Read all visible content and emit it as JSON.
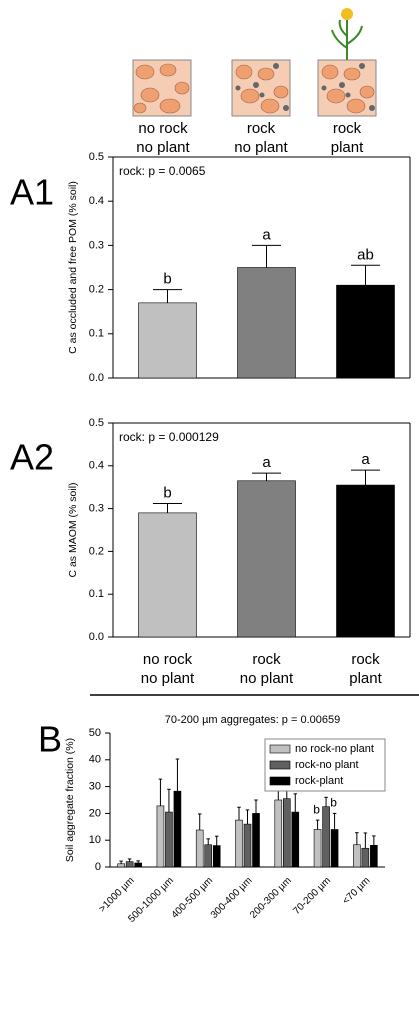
{
  "illustration": {
    "labels": [
      "no rock\nno plant",
      "rock\nno plant",
      "rock\nplant"
    ]
  },
  "chart_data": [
    {
      "type": "bar",
      "panel": "A1",
      "ylabel": "C as occluded and free POM (% soil)",
      "annotation": "rock: p = 0.0065",
      "categories": [
        null,
        null,
        null
      ],
      "values": [
        0.17,
        0.25,
        0.21
      ],
      "errors": [
        0.03,
        0.05,
        0.045
      ],
      "letters": [
        "b",
        "a",
        "ab"
      ],
      "colors": [
        "#c0c0c0",
        "#808080",
        "#000000"
      ],
      "ylim": [
        0,
        0.5
      ],
      "yticks": [
        {
          "value": 0,
          "label": "0.0"
        },
        0.1,
        0.2,
        0.3,
        0.4,
        0.5
      ]
    },
    {
      "type": "bar",
      "panel": "A2",
      "ylabel": "C as MAOM (% soil)",
      "annotation": "rock: p = 0.000129",
      "categories": [
        "no rock\nno plant",
        "rock\nno plant",
        "rock\nplant"
      ],
      "values": [
        0.29,
        0.365,
        0.355
      ],
      "errors": [
        0.022,
        0.018,
        0.035
      ],
      "letters": [
        "b",
        "a",
        "a"
      ],
      "colors": [
        "#c0c0c0",
        "#808080",
        "#000000"
      ],
      "ylim": [
        0,
        0.5
      ],
      "yticks": [
        {
          "value": 0,
          "label": "0.0"
        },
        0.1,
        0.2,
        0.3,
        0.4,
        0.5
      ]
    },
    {
      "type": "grouped_bar",
      "panel": "B",
      "title": "70-200 µm aggregates: p = 0.00659",
      "ylabel": "Soil aggregate fraction (%)",
      "categories": [
        ">1000 µm",
        "500-1000 µm",
        "400-500 µm",
        "300-400 µm",
        "200-300 µm",
        "70-200 µm",
        "<70 µm"
      ],
      "series": [
        {
          "name": "no rock-no plant",
          "color": "#c0c0c0",
          "values": [
            1.2,
            22.8,
            13.8,
            17.5,
            25,
            14,
            8.3
          ],
          "errors": [
            1,
            10,
            6,
            4.8,
            9,
            3.5,
            4.5
          ],
          "letters": [
            null,
            null,
            null,
            null,
            null,
            "b",
            null
          ]
        },
        {
          "name": "rock-no plant",
          "color": "#606060",
          "values": [
            2,
            20.5,
            8.3,
            16,
            25.5,
            22.5,
            7
          ],
          "errors": [
            1,
            8.5,
            2.2,
            5.3,
            4.5,
            3.5,
            5.7
          ],
          "letters": [
            null,
            null,
            null,
            null,
            null,
            "a",
            null
          ]
        },
        {
          "name": "rock-plant",
          "color": "#000000",
          "values": [
            1.5,
            28.3,
            8,
            20,
            20.5,
            14,
            8.1
          ],
          "errors": [
            0.8,
            12,
            3.5,
            5,
            6.8,
            6,
            3.5
          ],
          "letters": [
            null,
            null,
            null,
            null,
            null,
            "b",
            null
          ]
        }
      ],
      "ylim": [
        0,
        50
      ],
      "yticks": [
        0,
        10,
        20,
        30,
        40,
        50
      ],
      "legend": "upper right"
    }
  ]
}
